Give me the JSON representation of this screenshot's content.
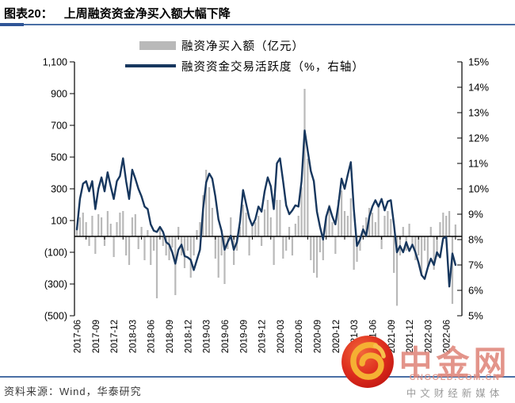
{
  "header": {
    "figure_label": "图表20：",
    "title": "上周融资资金净买入额大幅下降"
  },
  "legend": {
    "bars_label": "融资净买入额（亿元）",
    "line_label": "融资资金交易活跃度（%，右轴）"
  },
  "footer": {
    "source": "资料来源：Wind，华泰研究"
  },
  "watermark": {
    "brand": "中金网",
    "domain": "CNGOLD.COM.CN",
    "tagline": "中文财经新媒体",
    "logo_red": "#d7281e",
    "logo_gold": "#f5b033"
  },
  "chart_data": {
    "type": "bar+line",
    "title": "上周融资资金净买入额大幅下降",
    "x_start": "2017-06",
    "x_end": "2022-07",
    "points_per_month": 2,
    "grid": "off",
    "x_tick_labels": [
      "2017-06",
      "2017-09",
      "2017-12",
      "2018-03",
      "2018-06",
      "2018-09",
      "2018-12",
      "2019-03",
      "2019-06",
      "2019-09",
      "2019-12",
      "2020-03",
      "2020-06",
      "2020-09",
      "2020-12",
      "2021-03",
      "2021-06",
      "2021-09",
      "2021-12",
      "2022-03",
      "2022-06"
    ],
    "left_axis": {
      "name": "融资净买入额（亿元）",
      "min": -500,
      "max": 1100,
      "ticks": [
        {
          "label": "1,100",
          "value": 1100
        },
        {
          "label": "900",
          "value": 900
        },
        {
          "label": "700",
          "value": 700
        },
        {
          "label": "500",
          "value": 500
        },
        {
          "label": "300",
          "value": 300
        },
        {
          "label": "100",
          "value": 100
        },
        {
          "label": "(100)",
          "value": -100
        },
        {
          "label": "(300)",
          "value": -300
        },
        {
          "label": "(500)",
          "value": -500
        }
      ]
    },
    "right_axis": {
      "name": "融资资金交易活跃度（%，右轴）",
      "min": 5,
      "max": 15,
      "ticks": [
        {
          "label": "15%",
          "value": 15
        },
        {
          "label": "14%",
          "value": 14
        },
        {
          "label": "13%",
          "value": 13
        },
        {
          "label": "12%",
          "value": 12
        },
        {
          "label": "11%",
          "value": 11
        },
        {
          "label": "10%",
          "value": 10
        },
        {
          "label": "9%",
          "value": 9
        },
        {
          "label": "8%",
          "value": 8
        },
        {
          "label": "7%",
          "value": 7
        },
        {
          "label": "6%",
          "value": 6
        },
        {
          "label": "5%",
          "value": 5
        }
      ]
    },
    "series": [
      {
        "name": "融资净买入额（亿元）",
        "type": "bar",
        "axis": "left",
        "color": "#b9b9b9",
        "values": [
          60,
          120,
          150,
          90,
          -60,
          130,
          -110,
          140,
          120,
          -60,
          160,
          80,
          -130,
          90,
          150,
          160,
          -120,
          -180,
          120,
          140,
          -80,
          60,
          -150,
          40,
          -180,
          -90,
          -390,
          50,
          -60,
          -120,
          -150,
          -70,
          -370,
          60,
          -120,
          -200,
          -90,
          -260,
          -120,
          40,
          90,
          260,
          420,
          310,
          180,
          -140,
          -260,
          -120,
          -300,
          -80,
          120,
          -180,
          -90,
          60,
          200,
          150,
          -120,
          60,
          90,
          130,
          -60,
          170,
          230,
          120,
          -180,
          230,
          230,
          -140,
          -90,
          60,
          -120,
          80,
          130,
          310,
          930,
          490,
          -150,
          -230,
          -260,
          -100,
          -150,
          130,
          200,
          90,
          -110,
          230,
          290,
          160,
          130,
          240,
          -210,
          -160,
          -90,
          70,
          120,
          180,
          150,
          90,
          200,
          -80,
          130,
          160,
          110,
          -230,
          -437,
          -120,
          60,
          -90,
          80,
          -60,
          -150,
          -120,
          -250,
          -90,
          -190,
          60,
          -210,
          -130,
          90,
          150,
          130,
          160,
          -425,
          75
        ]
      },
      {
        "name": "融资资金交易活跃度（%，右轴）",
        "type": "line",
        "axis": "right",
        "color": "#17375e",
        "values": [
          8.4,
          9.6,
          10.2,
          10.3,
          9.9,
          10.3,
          9.2,
          10.0,
          10.45,
          9.9,
          10.65,
          10.1,
          9.6,
          10.3,
          10.5,
          11.2,
          10.3,
          9.6,
          10.75,
          10.4,
          10.0,
          9.7,
          9.3,
          9.2,
          8.6,
          8.35,
          8.3,
          8.5,
          8.3,
          7.9,
          7.8,
          7.5,
          7.05,
          7.6,
          7.8,
          7.35,
          7.3,
          7.2,
          6.8,
          7.2,
          7.6,
          9.2,
          10.25,
          10.6,
          10.4,
          9.7,
          8.8,
          8.35,
          7.6,
          7.9,
          8.15,
          7.6,
          7.9,
          8.7,
          9.95,
          9.4,
          8.85,
          8.55,
          8.8,
          9.3,
          9.1,
          9.9,
          10.45,
          10.1,
          9.2,
          11.0,
          11.2,
          10.3,
          9.35,
          9.0,
          9.15,
          9.35,
          9.3,
          10.3,
          12.3,
          11.5,
          10.7,
          10.3,
          9.1,
          8.5,
          8.0,
          8.9,
          9.3,
          8.9,
          8.6,
          9.4,
          10.4,
          10.0,
          10.55,
          11.05,
          9.2,
          7.75,
          8.0,
          8.4,
          8.15,
          8.9,
          9.3,
          9.55,
          9.3,
          9.6,
          9.15,
          9.5,
          9.55,
          8.6,
          7.5,
          7.75,
          7.5,
          7.9,
          7.55,
          7.8,
          7.5,
          7.1,
          6.6,
          6.45,
          6.9,
          7.25,
          7.0,
          7.5,
          7.3,
          8.05,
          8.1,
          6.15,
          7.45,
          7.0
        ]
      }
    ]
  }
}
